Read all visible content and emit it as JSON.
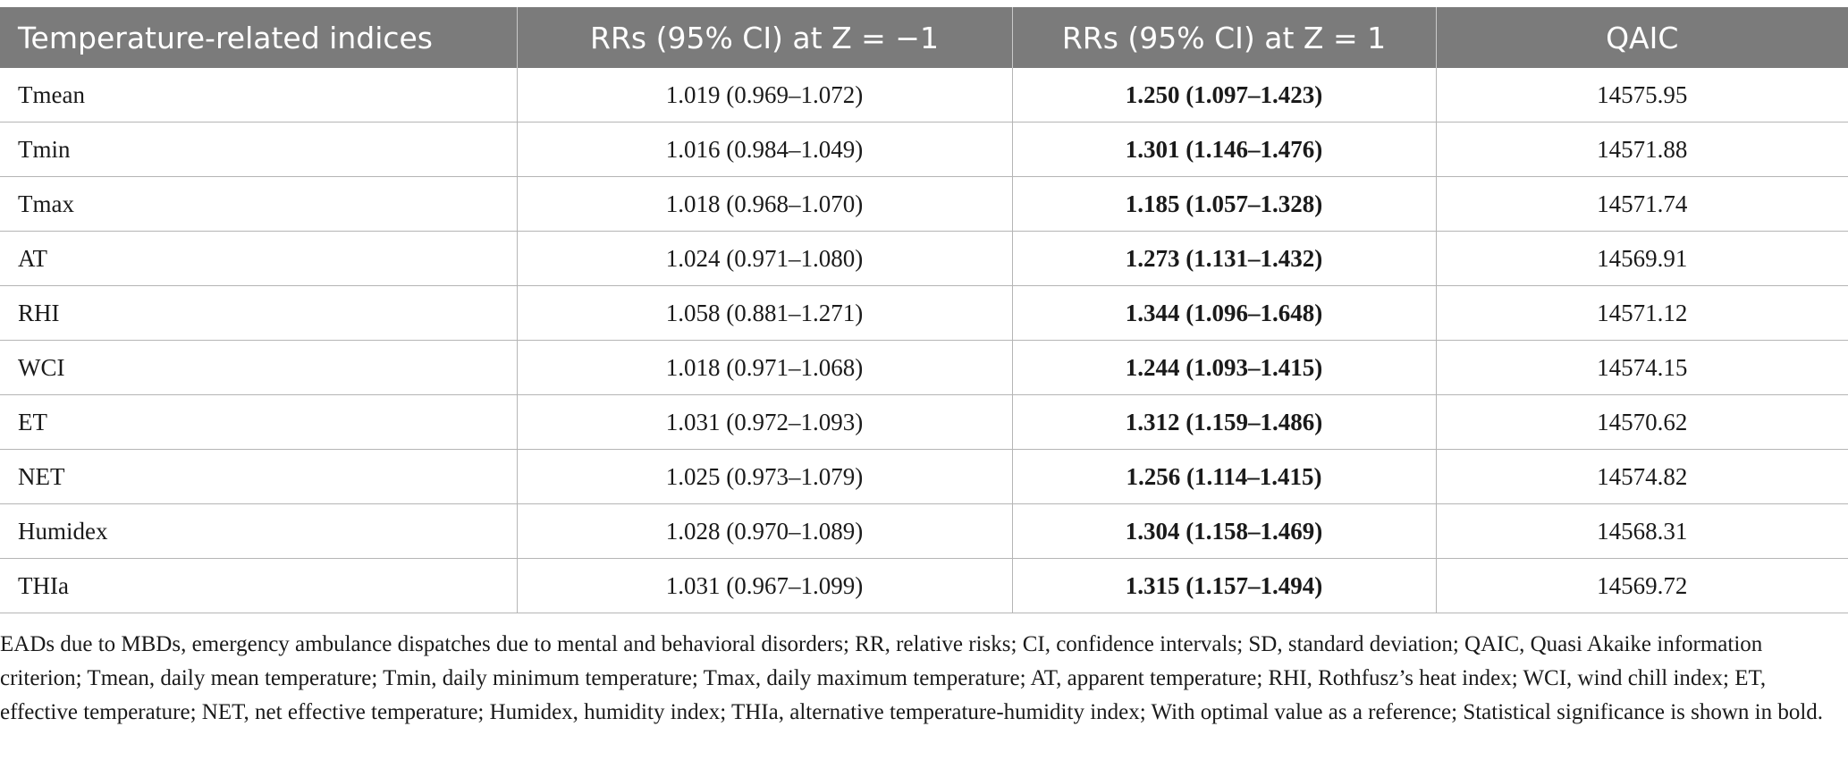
{
  "table": {
    "headers": [
      "Temperature-related indices",
      "RRs (95% CI) at Z = −1",
      "RRs (95% CI) at Z = 1",
      "QAIC"
    ],
    "rows": [
      {
        "index": "Tmean",
        "rr_neg": "1.019 (0.969–1.072)",
        "rr_pos": "1.250 (1.097–1.423)",
        "qaic": "14575.95"
      },
      {
        "index": "Tmin",
        "rr_neg": "1.016 (0.984–1.049)",
        "rr_pos": "1.301 (1.146–1.476)",
        "qaic": "14571.88"
      },
      {
        "index": "Tmax",
        "rr_neg": "1.018 (0.968–1.070)",
        "rr_pos": "1.185 (1.057–1.328)",
        "qaic": "14571.74"
      },
      {
        "index": "AT",
        "rr_neg": "1.024 (0.971–1.080)",
        "rr_pos": "1.273 (1.131–1.432)",
        "qaic": "14569.91"
      },
      {
        "index": "RHI",
        "rr_neg": "1.058 (0.881–1.271)",
        "rr_pos": "1.344 (1.096–1.648)",
        "qaic": "14571.12"
      },
      {
        "index": "WCI",
        "rr_neg": "1.018 (0.971–1.068)",
        "rr_pos": "1.244 (1.093–1.415)",
        "qaic": "14574.15"
      },
      {
        "index": "ET",
        "rr_neg": "1.031 (0.972–1.093)",
        "rr_pos": "1.312 (1.159–1.486)",
        "qaic": "14570.62"
      },
      {
        "index": "NET",
        "rr_neg": "1.025 (0.973–1.079)",
        "rr_pos": "1.256 (1.114–1.415)",
        "qaic": "14574.82"
      },
      {
        "index": "Humidex",
        "rr_neg": "1.028 (0.970–1.089)",
        "rr_pos": "1.304 (1.158–1.469)",
        "qaic": "14568.31"
      },
      {
        "index": "THIa",
        "rr_neg": "1.031 (0.967–1.099)",
        "rr_pos": "1.315 (1.157–1.494)",
        "qaic": "14569.72"
      }
    ]
  },
  "footnote": "EADs due to MBDs, emergency ambulance dispatches due to mental and behavioral disorders; RR, relative risks; CI, confidence intervals; SD, standard deviation; QAIC, Quasi Akaike information criterion; Tmean, daily mean temperature; Tmin, daily minimum temperature; Tmax, daily maximum temperature; AT, apparent temperature; RHI, Rothfusz’s heat index; WCI, wind chill index; ET, effective temperature; NET, net effective temperature; Humidex, humidity index; THIa, alternative temperature-humidity index; With optimal value as a reference; Statistical significance is shown in bold.",
  "colors": {
    "header_bg": "#7b7b7b",
    "header_text": "#ffffff",
    "rule": "#b5b5b5"
  }
}
